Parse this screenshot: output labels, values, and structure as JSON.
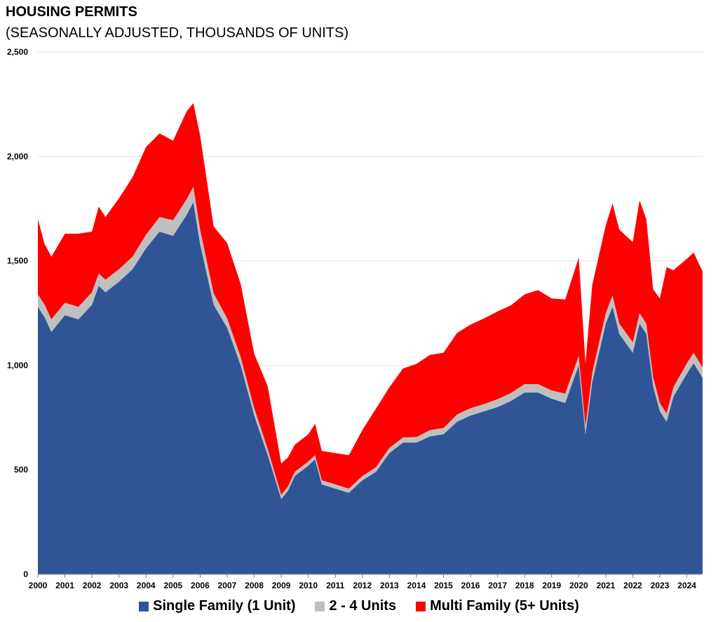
{
  "chart_data": {
    "type": "area",
    "stacked": true,
    "title": "HOUSING PERMITS",
    "subtitle": "(SEASONALLY ADJUSTED, THOUSANDS OF UNITS)",
    "xlabel": "",
    "ylabel": "",
    "ylim": [
      0,
      2500
    ],
    "yticks": [
      0,
      500,
      1000,
      1500,
      2000,
      2500
    ],
    "ytick_labels": [
      "0",
      "500",
      "1,000",
      "1,500",
      "2,000",
      "2,500"
    ],
    "xlim": [
      2000,
      2024.58
    ],
    "xticks": [
      2000,
      2001,
      2002,
      2003,
      2004,
      2005,
      2006,
      2007,
      2008,
      2009,
      2010,
      2011,
      2012,
      2013,
      2014,
      2015,
      2016,
      2017,
      2018,
      2019,
      2020,
      2021,
      2022,
      2023,
      2024
    ],
    "xtick_labels": [
      "2000",
      "2001",
      "2002",
      "2003",
      "2004",
      "2005",
      "2006",
      "2007",
      "2008",
      "2009",
      "2010",
      "2011",
      "2012",
      "2013",
      "2014",
      "2015",
      "2016",
      "2017",
      "2018",
      "2019",
      "2020",
      "2021",
      "2022",
      "2023",
      "2024"
    ],
    "grid": "horizontal",
    "legend_position": "bottom",
    "x": [
      2000.0,
      2000.25,
      2000.5,
      2001.0,
      2001.5,
      2002.0,
      2002.25,
      2002.5,
      2003.0,
      2003.5,
      2004.0,
      2004.5,
      2005.0,
      2005.5,
      2005.75,
      2006.0,
      2006.5,
      2007.0,
      2007.5,
      2008.0,
      2008.5,
      2009.0,
      2009.25,
      2009.5,
      2010.0,
      2010.25,
      2010.5,
      2011.0,
      2011.5,
      2012.0,
      2012.5,
      2013.0,
      2013.5,
      2014.0,
      2014.5,
      2015.0,
      2015.5,
      2016.0,
      2016.5,
      2017.0,
      2017.5,
      2018.0,
      2018.5,
      2019.0,
      2019.5,
      2020.0,
      2020.25,
      2020.5,
      2021.0,
      2021.25,
      2021.5,
      2022.0,
      2022.25,
      2022.5,
      2022.75,
      2023.0,
      2023.25,
      2023.5,
      2024.0,
      2024.25,
      2024.58
    ],
    "series": [
      {
        "name": "Single Family (1 Unit)",
        "color": "#2f5597",
        "values": [
          1280,
          1230,
          1160,
          1240,
          1220,
          1290,
          1380,
          1350,
          1400,
          1460,
          1560,
          1640,
          1620,
          1720,
          1780,
          1580,
          1290,
          1180,
          1000,
          760,
          570,
          360,
          400,
          470,
          520,
          550,
          430,
          410,
          390,
          450,
          490,
          580,
          630,
          630,
          660,
          670,
          730,
          760,
          780,
          800,
          830,
          870,
          870,
          840,
          820,
          1000,
          670,
          920,
          1200,
          1280,
          1150,
          1060,
          1200,
          1150,
          900,
          780,
          730,
          850,
          960,
          1010,
          940
        ]
      },
      {
        "name": "2 - 4 Units",
        "color": "#bfbfbf",
        "values": [
          60,
          60,
          60,
          60,
          60,
          60,
          60,
          60,
          60,
          60,
          65,
          70,
          75,
          75,
          75,
          70,
          55,
          45,
          40,
          35,
          30,
          20,
          20,
          20,
          20,
          20,
          20,
          20,
          20,
          20,
          22,
          25,
          25,
          27,
          30,
          30,
          35,
          35,
          35,
          38,
          38,
          40,
          40,
          40,
          45,
          45,
          40,
          45,
          50,
          55,
          50,
          50,
          50,
          50,
          45,
          40,
          40,
          45,
          50,
          50,
          50
        ]
      },
      {
        "name": "Multi Family (5+ Units)",
        "color": "#ff0000",
        "values": [
          360,
          290,
          300,
          330,
          350,
          290,
          320,
          300,
          340,
          380,
          420,
          400,
          380,
          420,
          400,
          450,
          320,
          360,
          350,
          260,
          300,
          150,
          140,
          130,
          130,
          150,
          140,
          150,
          160,
          220,
          280,
          290,
          330,
          350,
          360,
          360,
          390,
          400,
          410,
          420,
          420,
          430,
          450,
          440,
          450,
          470,
          300,
          420,
          420,
          440,
          450,
          480,
          540,
          500,
          420,
          500,
          700,
          560,
          500,
          480,
          460
        ]
      }
    ]
  }
}
